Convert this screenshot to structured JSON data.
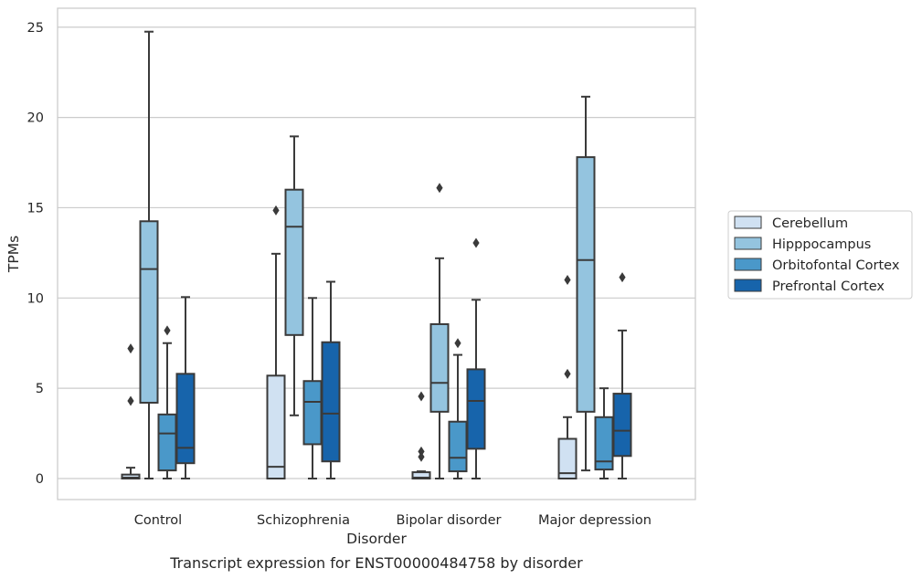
{
  "chart_data": {
    "type": "boxplot",
    "title": "",
    "caption": "Transcript expression for ENST00000484758 by disorder",
    "xlabel": "Disorder",
    "ylabel": "TPMs",
    "ylim": [
      -1.2,
      26
    ],
    "yticks": [
      0,
      5,
      10,
      15,
      20,
      25
    ],
    "grid": "horizontal",
    "legend_position": "right",
    "categories": [
      "Control",
      "Schizophrenia",
      "Bipolar disorder",
      "Major depression"
    ],
    "series": [
      {
        "name": "Cerebellum",
        "color": "#d0e1f2",
        "boxes": [
          {
            "whislo": 0.0,
            "q1": 0.0,
            "med": 0.05,
            "q3": 0.22,
            "whishi": 0.6,
            "fliers": [
              4.3,
              7.2
            ]
          },
          {
            "whislo": 0.0,
            "q1": 0.0,
            "med": 0.65,
            "q3": 5.7,
            "whishi": 12.45,
            "fliers": [
              14.85
            ]
          },
          {
            "whislo": 0.0,
            "q1": 0.0,
            "med": 0.05,
            "q3": 0.35,
            "whishi": 0.4,
            "fliers": [
              1.2,
              1.5,
              4.55
            ]
          },
          {
            "whislo": 0.0,
            "q1": 0.0,
            "med": 0.3,
            "q3": 2.2,
            "whishi": 3.4,
            "fliers": [
              5.8,
              11.0
            ]
          }
        ]
      },
      {
        "name": "Hipppocampus",
        "color": "#94c4df",
        "boxes": [
          {
            "whislo": 0.0,
            "q1": 4.2,
            "med": 11.6,
            "q3": 14.25,
            "whishi": 24.75,
            "fliers": []
          },
          {
            "whislo": 3.5,
            "q1": 7.95,
            "med": 13.95,
            "q3": 16.0,
            "whishi": 18.95,
            "fliers": []
          },
          {
            "whislo": 0.0,
            "q1": 3.7,
            "med": 5.3,
            "q3": 8.55,
            "whishi": 12.2,
            "fliers": [
              16.1
            ]
          },
          {
            "whislo": 0.45,
            "q1": 3.7,
            "med": 12.1,
            "q3": 17.8,
            "whishi": 21.15,
            "fliers": []
          }
        ]
      },
      {
        "name": "Orbitofontal Cortex",
        "color": "#4a98c9",
        "boxes": [
          {
            "whislo": 0.0,
            "q1": 0.45,
            "med": 2.5,
            "q3": 3.55,
            "whishi": 7.5,
            "fliers": [
              8.2
            ]
          },
          {
            "whislo": 0.0,
            "q1": 1.9,
            "med": 4.25,
            "q3": 5.4,
            "whishi": 10.0,
            "fliers": []
          },
          {
            "whislo": 0.0,
            "q1": 0.4,
            "med": 1.15,
            "q3": 3.15,
            "whishi": 6.85,
            "fliers": [
              7.5
            ]
          },
          {
            "whislo": 0.0,
            "q1": 0.5,
            "med": 0.95,
            "q3": 3.4,
            "whishi": 5.0,
            "fliers": []
          }
        ]
      },
      {
        "name": "Prefrontal Cortex",
        "color": "#1764ab",
        "boxes": [
          {
            "whislo": 0.0,
            "q1": 0.85,
            "med": 1.7,
            "q3": 5.8,
            "whishi": 10.05,
            "fliers": []
          },
          {
            "whislo": 0.0,
            "q1": 0.95,
            "med": 3.6,
            "q3": 7.55,
            "whishi": 10.9,
            "fliers": []
          },
          {
            "whislo": 0.0,
            "q1": 1.65,
            "med": 4.3,
            "q3": 6.05,
            "whishi": 9.9,
            "fliers": [
              13.05
            ]
          },
          {
            "whislo": 0.0,
            "q1": 1.25,
            "med": 2.65,
            "q3": 4.7,
            "whishi": 8.2,
            "fliers": [
              11.15
            ]
          }
        ]
      }
    ]
  }
}
